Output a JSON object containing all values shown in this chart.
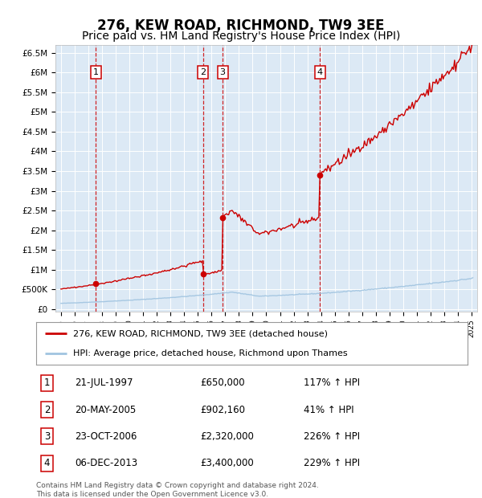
{
  "title": "276, KEW ROAD, RICHMOND, TW9 3EE",
  "subtitle": "Price paid vs. HM Land Registry's House Price Index (HPI)",
  "title_fontsize": 12,
  "subtitle_fontsize": 10,
  "plot_bg_color": "#dce9f5",
  "ylabel_ticks": [
    "£0",
    "£500K",
    "£1M",
    "£1.5M",
    "£2M",
    "£2.5M",
    "£3M",
    "£3.5M",
    "£4M",
    "£4.5M",
    "£5M",
    "£5.5M",
    "£6M",
    "£6.5M"
  ],
  "ylabel_values": [
    0,
    500000,
    1000000,
    1500000,
    2000000,
    2500000,
    3000000,
    3500000,
    4000000,
    4500000,
    5000000,
    5500000,
    6000000,
    6500000
  ],
  "xlim": [
    1994.6,
    2025.4
  ],
  "ylim": [
    -50000,
    6700000
  ],
  "hpi_color": "#a0c4e0",
  "price_color": "#cc0000",
  "dashed_line_color": "#cc0000",
  "transactions": [
    {
      "num": "1",
      "year": 1997.55,
      "price": 650000
    },
    {
      "num": "2",
      "year": 2005.38,
      "price": 902160
    },
    {
      "num": "3",
      "year": 2006.81,
      "price": 2320000
    },
    {
      "num": "4",
      "year": 2013.92,
      "price": 3400000
    }
  ],
  "legend_entries": [
    {
      "label": "276, KEW ROAD, RICHMOND, TW9 3EE (detached house)",
      "color": "#cc0000"
    },
    {
      "label": "HPI: Average price, detached house, Richmond upon Thames",
      "color": "#a0c4e0"
    }
  ],
  "table_rows": [
    {
      "num": "1",
      "date": "21-JUL-1997",
      "price": "£650,000",
      "change": "117% ↑ HPI"
    },
    {
      "num": "2",
      "date": "20-MAY-2005",
      "price": "£902,160",
      "change": "41% ↑ HPI"
    },
    {
      "num": "3",
      "date": "23-OCT-2006",
      "price": "£2,320,000",
      "change": "226% ↑ HPI"
    },
    {
      "num": "4",
      "date": "06-DEC-2013",
      "price": "£3,400,000",
      "change": "229% ↑ HPI"
    }
  ],
  "footer": "Contains HM Land Registry data © Crown copyright and database right 2024.\nThis data is licensed under the Open Government Licence v3.0."
}
